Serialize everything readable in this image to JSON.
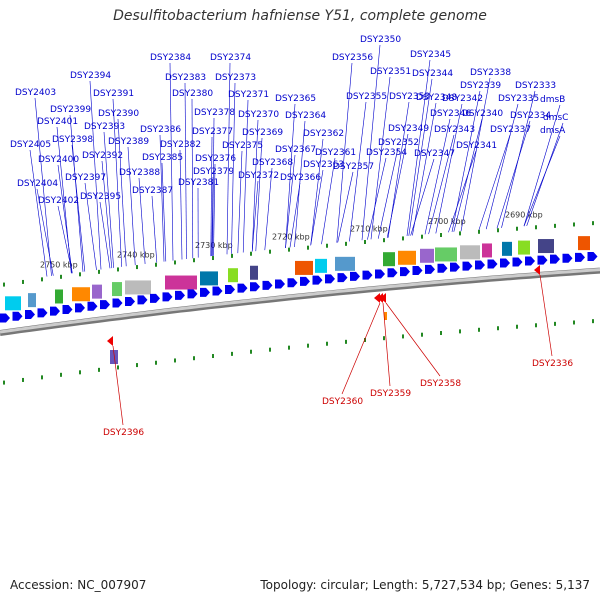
{
  "title": "Desulfitobacterium hafniense Y51, complete genome",
  "footer": {
    "accession": "Accession: NC_007907",
    "summary": "Topology: circular; Length: 5,727,534 bp; Genes: 5,137"
  },
  "colors": {
    "forward_gene": "#0000ee",
    "reverse_gene": "#ee0000",
    "forward_label": "#0000cc",
    "reverse_label": "#cc0000",
    "backbone": "#999999",
    "tick": "#228822"
  },
  "kbp_labels": [
    "2750 kbp",
    "2740 kbp",
    "2730 kbp",
    "2720 kbp",
    "2710 kbp",
    "2700 kbp",
    "2690 kbp"
  ],
  "forward_labels": [
    "DSY2350",
    "DSY2345",
    "DSY2374",
    "DSY2384",
    "DSY2356",
    "DSY2351",
    "DSY2344",
    "DSY2338",
    "DSY2394",
    "DSY2383",
    "DSY2373",
    "DSY2339",
    "DSY2333",
    "DSY2403",
    "DSY2391",
    "DSY2380",
    "DSY2371",
    "DSY2365",
    "DSY2355",
    "DSY2353",
    "DSY2348",
    "DSY2342",
    "DSY2335",
    "dmsB",
    "DSY2399",
    "DSY2390",
    "DSY2378",
    "DSY2370",
    "DSY2364",
    "DSY2346",
    "DSY2340",
    "DSY2334",
    "dmsC",
    "DSY2401",
    "DSY2393",
    "DSY2386",
    "DSY2377",
    "DSY2369",
    "DSY2362",
    "DSY2349",
    "DSY2343",
    "DSY2337",
    "dmsA",
    "DSY2398",
    "DSY2405",
    "DSY2382",
    "DSY2375",
    "DSY2367",
    "DSY2361",
    "DSY2352",
    "DSY2341",
    "DSY2392",
    "DSY2385",
    "DSY2376",
    "DSY2368",
    "DSY2363",
    "DSY2354",
    "DSY2347",
    "DSY2400",
    "DSY2389",
    "DSY2379",
    "DSY2372",
    "DSY2357",
    "DSY2388",
    "DSY2397",
    "DSY2381",
    "DSY2366",
    "DSY2404",
    "DSY2387",
    "DSY2395",
    "DSY2402"
  ],
  "reverse_labels": [
    "DSY2396",
    "DSY2360",
    "DSY2359",
    "DSY2358",
    "DSY2336"
  ]
}
